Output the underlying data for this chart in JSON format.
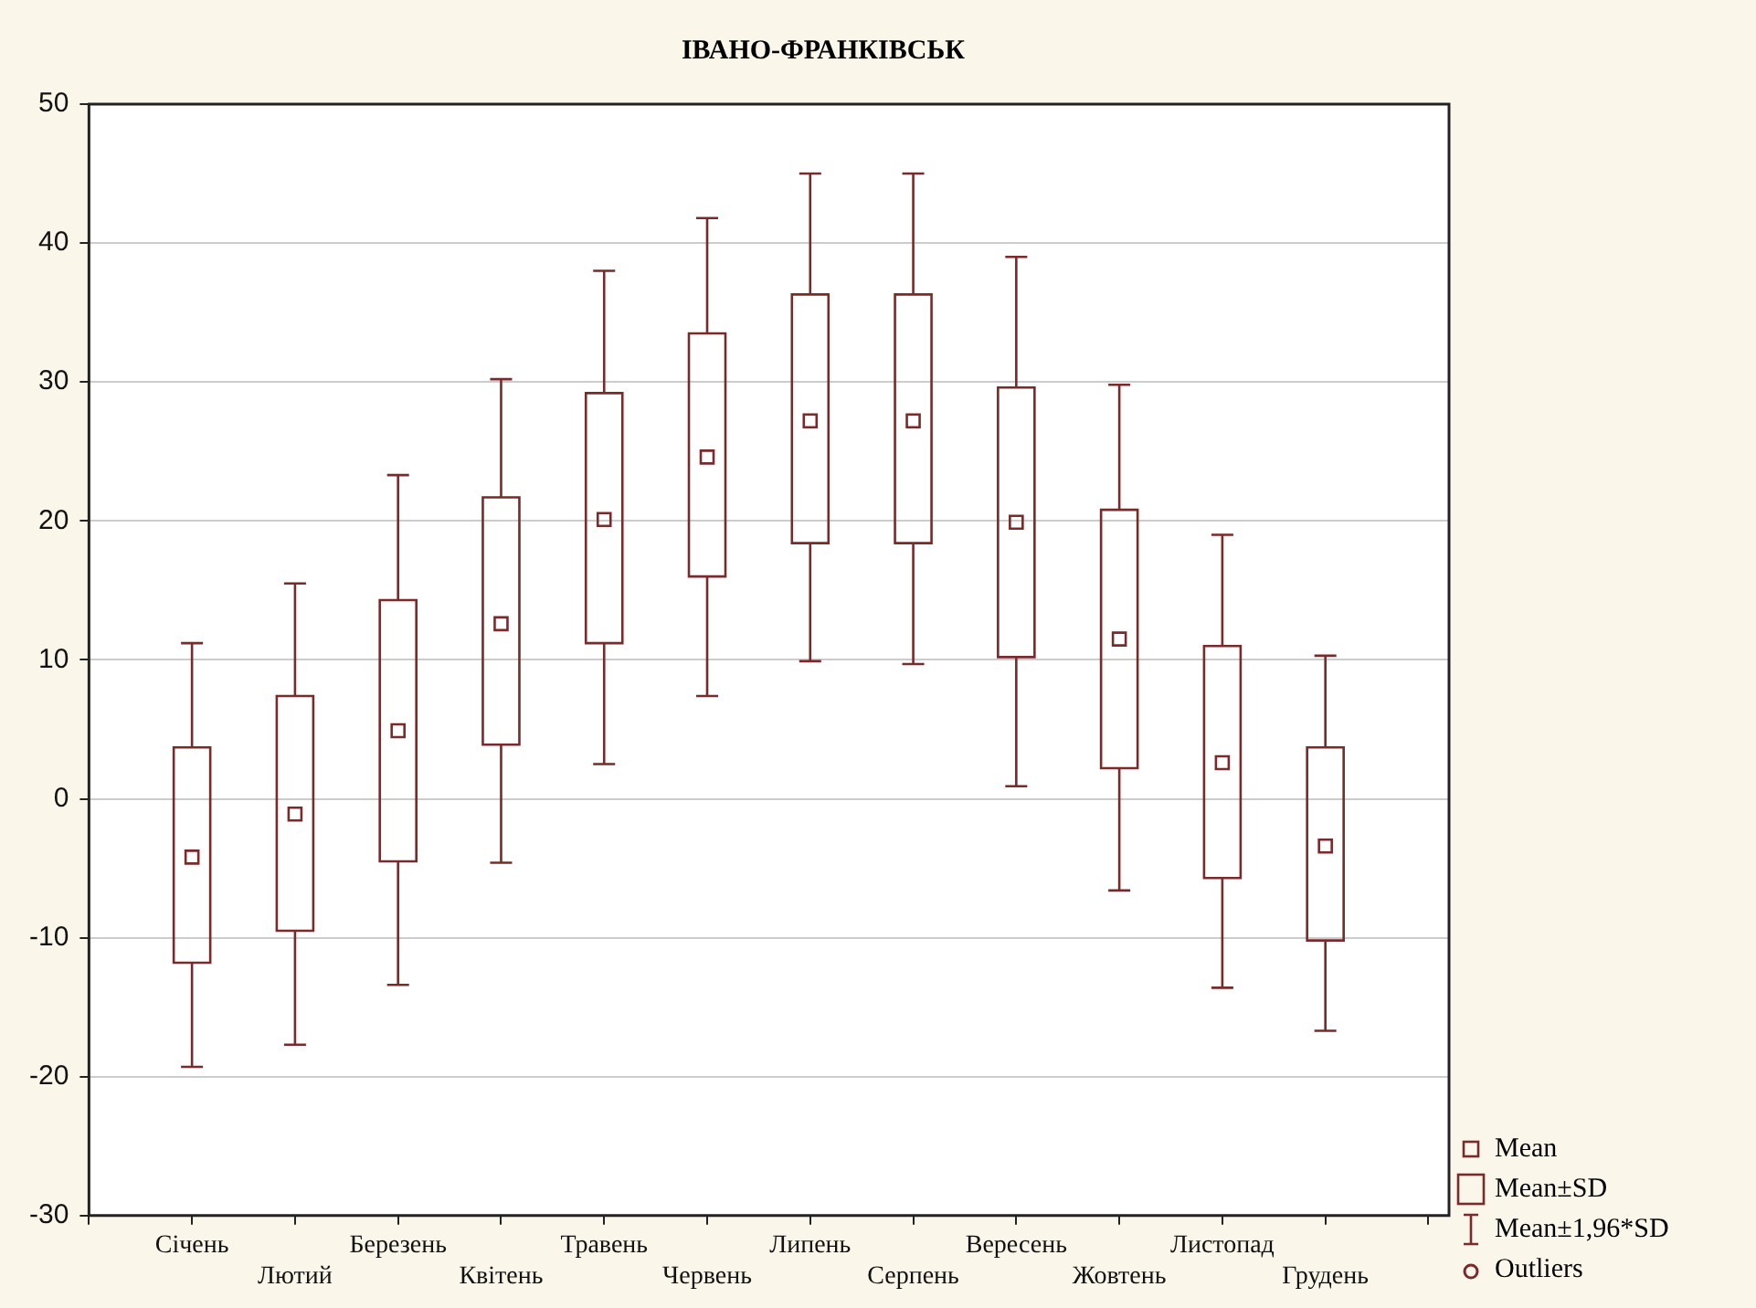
{
  "chart_data": {
    "type": "box",
    "title": "ІВАНО-ФРАНКІВСЬК",
    "categories": [
      "Січень",
      "Лютий",
      "Березень",
      "Квітень",
      "Травень",
      "Червень",
      "Липень",
      "Серпень",
      "Вересень",
      "Жовтень",
      "Листопад",
      "Грудень"
    ],
    "color": "#7a2a2a",
    "boxes": [
      {
        "low": -19.3,
        "q1": -11.8,
        "median": -4.2,
        "q3": 3.7,
        "high": 11.2
      },
      {
        "low": -17.7,
        "q1": -9.5,
        "median": -1.1,
        "q3": 7.4,
        "high": 15.5
      },
      {
        "low": -13.4,
        "q1": -4.5,
        "median": 4.9,
        "q3": 14.3,
        "high": 23.3
      },
      {
        "low": -4.6,
        "q1": 3.9,
        "median": 12.6,
        "q3": 21.7,
        "high": 30.2
      },
      {
        "low": 2.5,
        "q1": 11.2,
        "median": 20.1,
        "q3": 29.2,
        "high": 38
      },
      {
        "low": 7.4,
        "q1": 16,
        "median": 24.6,
        "q3": 33.5,
        "high": 41.8
      },
      {
        "low": 9.9,
        "q1": 18.4,
        "median": 27.2,
        "q3": 36.3,
        "high": 45
      },
      {
        "low": 9.7,
        "q1": 18.4,
        "median": 27.2,
        "q3": 36.3,
        "high": 45
      },
      {
        "low": 0.9,
        "q1": 10.2,
        "median": 19.9,
        "q3": 29.6,
        "high": 39
      },
      {
        "low": -6.6,
        "q1": 2.2,
        "median": 11.5,
        "q3": 20.8,
        "high": 29.8
      },
      {
        "low": -13.6,
        "q1": -5.7,
        "median": 2.6,
        "q3": 11,
        "high": 19
      },
      {
        "low": -16.7,
        "q1": -10.2,
        "median": -3.4,
        "q3": 3.7,
        "high": 10.3
      }
    ],
    "ylim": [
      -30,
      50
    ],
    "yticks": [
      -30,
      -20,
      -10,
      0,
      10,
      20,
      30,
      40,
      50
    ],
    "grid": "y",
    "marker": "square",
    "annotations": [
      "Mean",
      "Mean±SD",
      "Mean±1,96*SD",
      "Outliers"
    ]
  }
}
